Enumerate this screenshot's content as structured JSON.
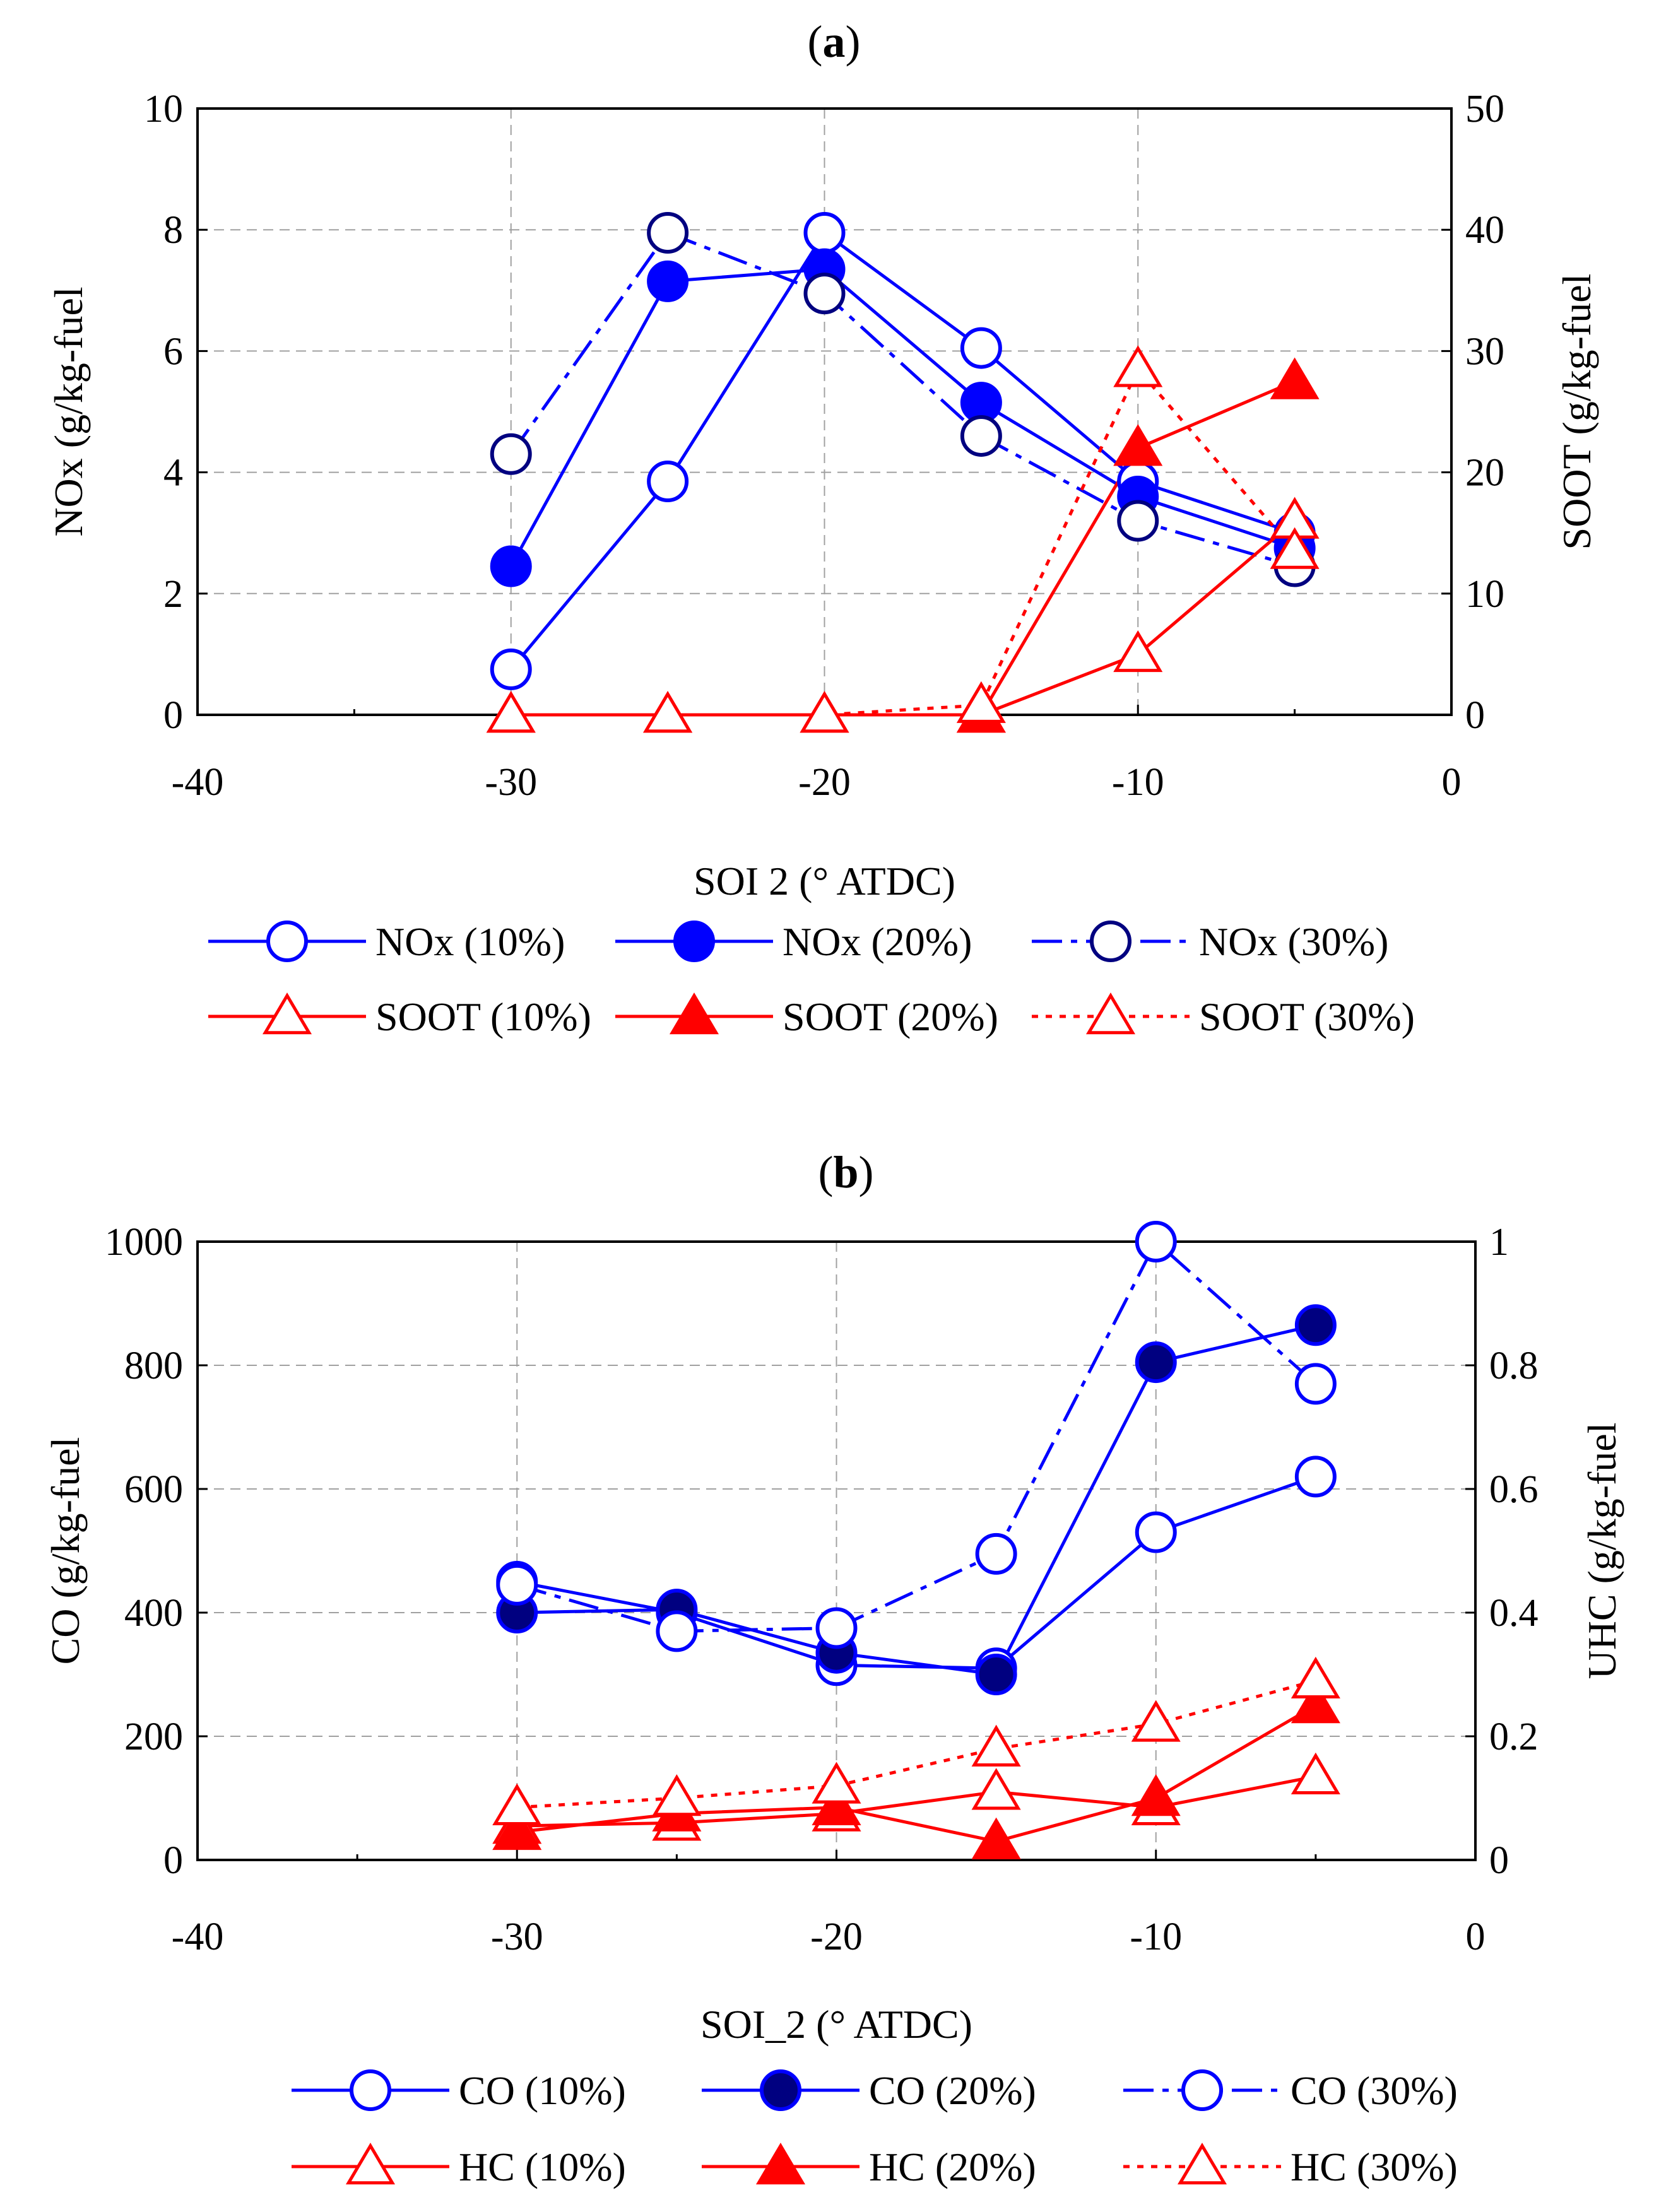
{
  "chart_data": [
    {
      "panel_label": "a",
      "type": "line",
      "xlabel": "SOI  2 (° ATDC)",
      "ylabel_left": "NOx (g/kg-fuel",
      "ylabel_right": "SOOT (g/kg-fuel",
      "xlim": [
        -40,
        0
      ],
      "ylim_left": [
        0,
        10
      ],
      "ylim_right": [
        0,
        50
      ],
      "x_ticks": [
        "-40",
        "-30",
        "-20",
        "-10",
        "0"
      ],
      "y_left_ticks": [
        "0",
        "2",
        "4",
        "6",
        "8",
        "10"
      ],
      "y_right_ticks": [
        "0",
        "10",
        "20",
        "30",
        "40",
        "50"
      ],
      "grid": true,
      "legend_position": "bottom",
      "series": [
        {
          "name": "NOx (10%)",
          "axis": "left",
          "color": "#0000ff",
          "line": "solid",
          "marker": "circle-open",
          "x": [
            -30,
            -25,
            -20,
            -15,
            -10,
            -5
          ],
          "y": [
            0.75,
            3.85,
            7.95,
            6.05,
            3.85,
            3.0
          ]
        },
        {
          "name": "NOx (20%)",
          "axis": "left",
          "color": "#0000ff",
          "line": "solid",
          "marker": "circle-filled",
          "x": [
            -30,
            -25,
            -20,
            -15,
            -10,
            -5
          ],
          "y": [
            2.45,
            7.15,
            7.35,
            5.15,
            3.6,
            2.75
          ]
        },
        {
          "name": "NOx (30%)",
          "axis": "left",
          "color": "#0000ff",
          "line": "dashdot",
          "marker": "circle-open-navy",
          "x": [
            -30,
            -25,
            -20,
            -15,
            -10,
            -5
          ],
          "y": [
            4.3,
            7.95,
            6.95,
            4.6,
            3.2,
            2.45
          ]
        },
        {
          "name": "SOOT (10%)",
          "axis": "right",
          "color": "#ff0000",
          "line": "solid",
          "marker": "triangle-open",
          "x": [
            -30,
            -25,
            -20,
            -15,
            -10,
            -5
          ],
          "y": [
            0,
            0,
            0,
            0,
            5,
            16
          ]
        },
        {
          "name": "SOOT (20%)",
          "axis": "right",
          "color": "#ff0000",
          "line": "solid",
          "marker": "triangle-filled",
          "x": [
            -15,
            -10,
            -5
          ],
          "y": [
            0,
            22,
            27.5
          ]
        },
        {
          "name": "SOOT (30%)",
          "axis": "right",
          "color": "#ff0000",
          "line": "dotted",
          "marker": "triangle-open",
          "x": [
            -30,
            -25,
            -20,
            -15,
            -10,
            -5
          ],
          "y": [
            0,
            0,
            0,
            0.8,
            28.5,
            13.5
          ]
        }
      ]
    },
    {
      "panel_label": "b",
      "type": "line",
      "xlabel": "SOI_2 (° ATDC)",
      "ylabel_left": "CO (g/kg-fuel",
      "ylabel_right": "UHC (g/kg-fuel",
      "xlim": [
        -40,
        0
      ],
      "ylim_left": [
        0,
        1000
      ],
      "ylim_right": [
        0,
        1
      ],
      "x_ticks": [
        "-40",
        "-30",
        "-20",
        "-10",
        "0"
      ],
      "y_left_ticks": [
        "0",
        "200",
        "400",
        "600",
        "800",
        "1000"
      ],
      "y_right_ticks": [
        "0",
        "0.2",
        "0.4",
        "0.6",
        "0.8",
        "1"
      ],
      "grid": true,
      "legend_position": "bottom",
      "series": [
        {
          "name": "CO (10%)",
          "axis": "left",
          "color": "#0000ff",
          "line": "solid",
          "marker": "circle-open",
          "x": [
            -30,
            -25,
            -20,
            -15,
            -10,
            -5
          ],
          "y": [
            450,
            400,
            315,
            310,
            530,
            620
          ]
        },
        {
          "name": "CO (20%)",
          "axis": "left",
          "color": "#0000ff",
          "line": "solid",
          "marker": "circle-filled-navy",
          "x": [
            -30,
            -25,
            -20,
            -15,
            -10,
            -5
          ],
          "y": [
            400,
            405,
            335,
            300,
            805,
            865
          ]
        },
        {
          "name": "CO (30%)",
          "axis": "left",
          "color": "#0000ff",
          "line": "dashdot",
          "marker": "circle-open",
          "x": [
            -30,
            -25,
            -20,
            -15,
            -10,
            -5
          ],
          "y": [
            445,
            370,
            375,
            495,
            1000,
            770
          ]
        },
        {
          "name": "HC (10%)",
          "axis": "right",
          "color": "#ff0000",
          "line": "solid",
          "marker": "triangle-open",
          "x": [
            -30,
            -25,
            -20,
            -15,
            -10,
            -5
          ],
          "y": [
            0.055,
            0.06,
            0.075,
            0.11,
            0.085,
            0.135
          ]
        },
        {
          "name": "HC (20%)",
          "axis": "right",
          "color": "#ff0000",
          "line": "solid",
          "marker": "triangle-filled",
          "x": [
            -30,
            -25,
            -20,
            -15,
            -10,
            -5
          ],
          "y": [
            0.045,
            0.075,
            0.085,
            0.03,
            0.1,
            0.25
          ]
        },
        {
          "name": "HC (30%)",
          "axis": "right",
          "color": "#ff0000",
          "line": "dotted",
          "marker": "triangle-open",
          "x": [
            -30,
            -25,
            -20,
            -15,
            -10,
            -5
          ],
          "y": [
            0.085,
            0.1,
            0.12,
            0.18,
            0.22,
            0.29
          ]
        }
      ]
    }
  ]
}
